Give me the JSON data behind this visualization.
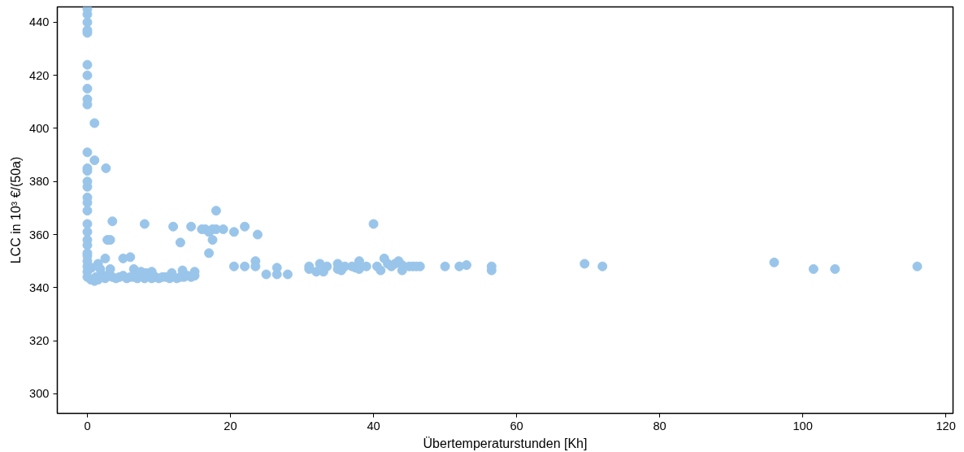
{
  "chart_data": {
    "type": "scatter",
    "xlabel": "Übertemperaturstunden [Kh]",
    "ylabel": "LCC in 10³ €/(50a)",
    "xlim": [
      -4.2,
      121
    ],
    "ylim": [
      292.6,
      445.8
    ],
    "xticks": [
      0,
      20,
      40,
      60,
      80,
      100,
      120
    ],
    "yticks": [
      300,
      320,
      340,
      360,
      380,
      400,
      420,
      440
    ],
    "grid": false,
    "marker": "circle",
    "series": [
      {
        "color": "#9ac5ea",
        "x": [
          0,
          0,
          0,
          0,
          0,
          0,
          0,
          0,
          0,
          0,
          0,
          0,
          0,
          0,
          0,
          0,
          0,
          0,
          0,
          0,
          0,
          0,
          0,
          0,
          0,
          0,
          0,
          0,
          1,
          1,
          2.6,
          3.5,
          3.2,
          2.8,
          2.5,
          1.5,
          0.5,
          1,
          1.2,
          1.5,
          2,
          2.5,
          3,
          3.5,
          4,
          4.5,
          5,
          5.5,
          6,
          6.5,
          7,
          8,
          9,
          9.5,
          10,
          10.5,
          11,
          11.5,
          12.5,
          13,
          13.5,
          14,
          14.5,
          15,
          5,
          6,
          6.5,
          7.5,
          8.2,
          9,
          11.8,
          13.3,
          15,
          3.2,
          1.8,
          0.6,
          8,
          12,
          14.5,
          13,
          16,
          16.5,
          17,
          17.5,
          18,
          18,
          17.5,
          17,
          19,
          20.5,
          22,
          23.8,
          23.5,
          22,
          20.5,
          23.5,
          25,
          26.5,
          26.5,
          28,
          31,
          31,
          32,
          32.5,
          33,
          33.5,
          35,
          35,
          35.5,
          36,
          37,
          37.5,
          38,
          38,
          39,
          40,
          40.5,
          41,
          41.5,
          42,
          42.5,
          43,
          43.5,
          44,
          44,
          45,
          45.5,
          46,
          46.5,
          50,
          52,
          53,
          56.5,
          56.5,
          69.5,
          72,
          96,
          101.5,
          104.5,
          116
        ],
        "values": [
          445,
          443,
          440,
          437,
          436,
          424,
          420,
          415,
          411,
          409,
          391,
          385,
          384,
          380,
          378,
          374,
          372,
          369,
          364,
          361,
          358,
          356,
          353,
          352,
          350,
          348,
          346,
          344,
          402,
          388,
          385,
          365,
          358,
          358,
          351,
          349,
          343,
          342.5,
          344,
          343,
          345,
          343.5,
          345,
          344,
          343.5,
          344,
          344.5,
          343.5,
          344,
          344,
          343.5,
          343.5,
          343.5,
          344,
          343.5,
          344,
          344,
          343.5,
          343.5,
          344,
          344,
          344.5,
          344,
          344.5,
          351,
          351.5,
          347,
          346,
          345.5,
          346,
          345.5,
          346.5,
          346,
          347,
          347,
          347.5,
          364,
          363,
          363,
          357,
          362,
          362,
          361,
          362,
          362,
          369,
          358,
          353,
          362,
          361,
          363,
          360,
          350,
          348,
          348,
          348,
          345,
          347.5,
          345,
          345,
          348,
          347,
          346,
          349,
          346,
          348,
          349,
          347,
          346.5,
          348,
          348,
          347.5,
          350,
          347,
          348,
          364,
          348,
          346.5,
          351,
          349,
          348,
          349,
          350,
          346.5,
          348.5,
          348,
          348,
          348,
          348,
          348,
          348,
          348.5,
          348,
          346.5,
          349,
          348,
          349.5,
          347,
          347,
          348
        ]
      }
    ]
  }
}
